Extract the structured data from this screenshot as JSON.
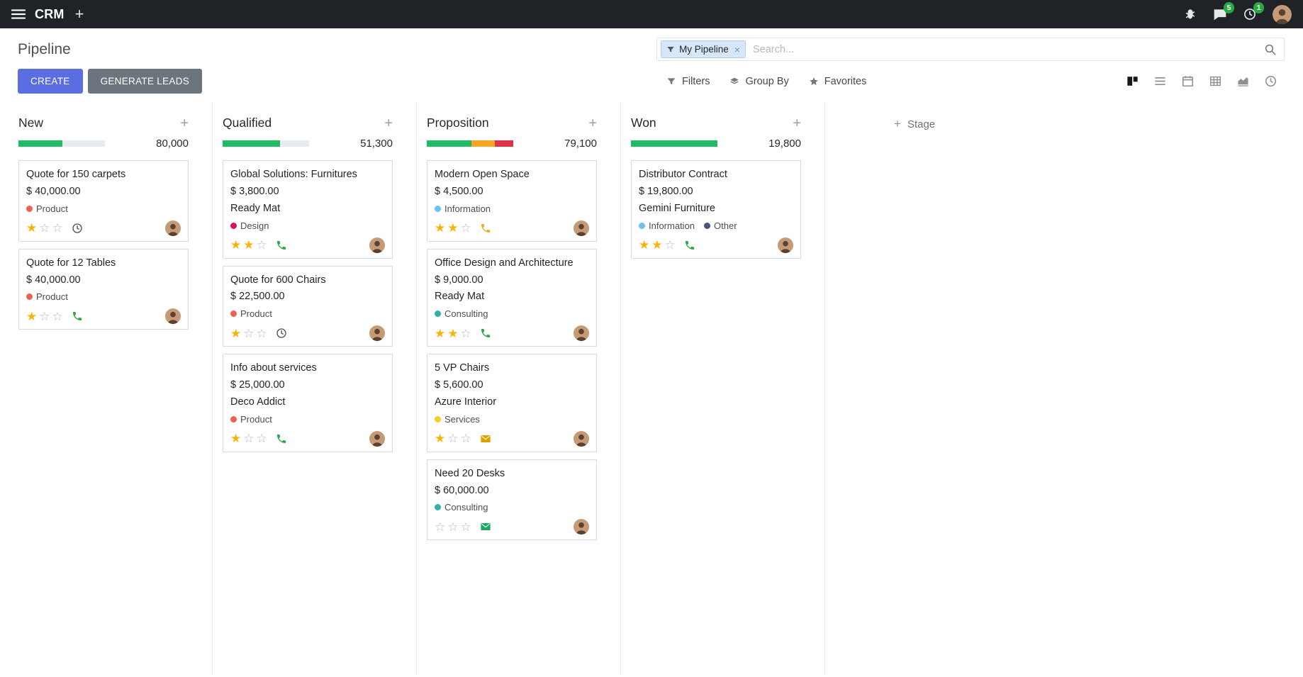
{
  "topbar": {
    "app_name": "CRM",
    "message_badge": "5",
    "activity_badge": "1"
  },
  "header": {
    "title": "Pipeline",
    "create_label": "CREATE",
    "generate_leads_label": "GENERATE LEADS",
    "search": {
      "facet": "My Pipeline",
      "placeholder": "Search..."
    },
    "filters_label": "Filters",
    "group_by_label": "Group By",
    "favorites_label": "Favorites"
  },
  "view_switcher": [
    {
      "name": "kanban",
      "active": true
    },
    {
      "name": "list",
      "active": false
    },
    {
      "name": "calendar",
      "active": false
    },
    {
      "name": "pivot",
      "active": false
    },
    {
      "name": "graph",
      "active": false
    },
    {
      "name": "activity",
      "active": false
    }
  ],
  "colors": {
    "accent": "#5a6ee1",
    "secondary": "#6c757d",
    "success": "#28a745",
    "progress_green": "#21ba67",
    "progress_yellow": "#f5a623",
    "progress_red": "#dc3545",
    "topbar_bg": "#1f2327",
    "star_gold": "#f5b50a"
  },
  "board": {
    "add_stage_label": "Stage",
    "columns": [
      {
        "title": "New",
        "counter": "80,000",
        "progress": [
          {
            "color": "#21ba67",
            "pct": 51
          }
        ],
        "cards": [
          {
            "title": "Quote for 150 carpets",
            "amount": "$ 40,000.00",
            "partner": "",
            "tags": [
              {
                "label": "Product",
                "color": "#f06050"
              }
            ],
            "stars": 1,
            "activity": {
              "type": "clock",
              "color": "#495057"
            }
          },
          {
            "title": "Quote for 12 Tables",
            "amount": "$ 40,000.00",
            "partner": "",
            "tags": [
              {
                "label": "Product",
                "color": "#f06050"
              }
            ],
            "stars": 1,
            "activity": {
              "type": "phone",
              "color": "#28a745"
            }
          }
        ]
      },
      {
        "title": "Qualified",
        "counter": "51,300",
        "progress": [
          {
            "color": "#21ba67",
            "pct": 66
          }
        ],
        "cards": [
          {
            "title": "Global Solutions: Furnitures",
            "amount": "$ 3,800.00",
            "partner": "Ready Mat",
            "tags": [
              {
                "label": "Design",
                "color": "#d6145f"
              }
            ],
            "stars": 2,
            "activity": {
              "type": "phone",
              "color": "#28a745"
            }
          },
          {
            "title": "Quote for 600 Chairs",
            "amount": "$ 22,500.00",
            "partner": "",
            "tags": [
              {
                "label": "Product",
                "color": "#f06050"
              }
            ],
            "stars": 1,
            "activity": {
              "type": "clock",
              "color": "#495057"
            }
          },
          {
            "title": "Info about services",
            "amount": "$ 25,000.00",
            "partner": "Deco Addict",
            "tags": [
              {
                "label": "Product",
                "color": "#f06050"
              }
            ],
            "stars": 1,
            "activity": {
              "type": "phone",
              "color": "#28a745"
            }
          }
        ]
      },
      {
        "title": "Proposition",
        "counter": "79,100",
        "progress": [
          {
            "color": "#21ba67",
            "pct": 52
          },
          {
            "color": "#f5a623",
            "pct": 27
          },
          {
            "color": "#dc3545",
            "pct": 21
          }
        ],
        "cards": [
          {
            "title": "Modern Open Space",
            "amount": "$ 4,500.00",
            "partner": "",
            "tags": [
              {
                "label": "Information",
                "color": "#6cc1ed"
              }
            ],
            "stars": 2,
            "activity": {
              "type": "phone",
              "color": "#f5a623"
            }
          },
          {
            "title": "Office Design and Architecture",
            "amount": "$ 9,000.00",
            "partner": "Ready Mat",
            "tags": [
              {
                "label": "Consulting",
                "color": "#2fb1a5"
              }
            ],
            "stars": 2,
            "activity": {
              "type": "phone",
              "color": "#28a745"
            }
          },
          {
            "title": "5 VP Chairs",
            "amount": "$ 5,600.00",
            "partner": "Azure Interior",
            "tags": [
              {
                "label": "Services",
                "color": "#f7cd1f"
              }
            ],
            "stars": 1,
            "activity": {
              "type": "envelope",
              "color": "#d9a300"
            }
          },
          {
            "title": "Need 20 Desks",
            "amount": "$ 60,000.00",
            "partner": "",
            "tags": [
              {
                "label": "Consulting",
                "color": "#2fb1a5"
              }
            ],
            "stars": 0,
            "activity": {
              "type": "envelope",
              "color": "#21a567"
            }
          }
        ]
      },
      {
        "title": "Won",
        "counter": "19,800",
        "progress": [
          {
            "color": "#21ba67",
            "pct": 100
          }
        ],
        "cards": [
          {
            "title": "Distributor Contract",
            "amount": "$ 19,800.00",
            "partner": "Gemini Furniture",
            "tags": [
              {
                "label": "Information",
                "color": "#6cc1ed"
              },
              {
                "label": "Other",
                "color": "#475577"
              }
            ],
            "stars": 2,
            "activity": {
              "type": "phone",
              "color": "#28a745"
            }
          }
        ]
      }
    ]
  }
}
